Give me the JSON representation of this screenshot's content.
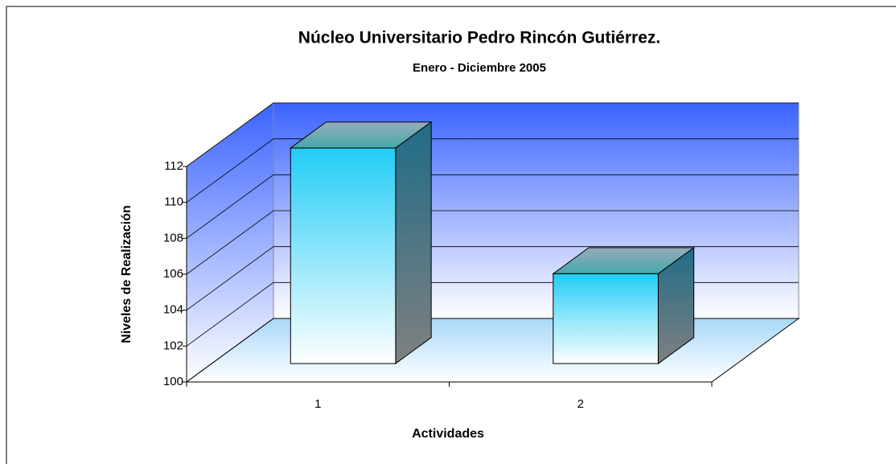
{
  "chart_data": {
    "type": "bar3d",
    "title": "Núcleo Universitario Pedro Rincón Gutiérrez.",
    "subtitle": "Enero - Diciembre 2005",
    "x_label": "Actividades",
    "y_label": "Niveles de Realización",
    "categories": [
      "1",
      "2"
    ],
    "values": [
      112,
      105
    ],
    "color": "#22ccf5",
    "ylim": [
      100,
      112
    ],
    "yticks": [
      100,
      102,
      104,
      106,
      108,
      110,
      112
    ],
    "grid": true
  }
}
